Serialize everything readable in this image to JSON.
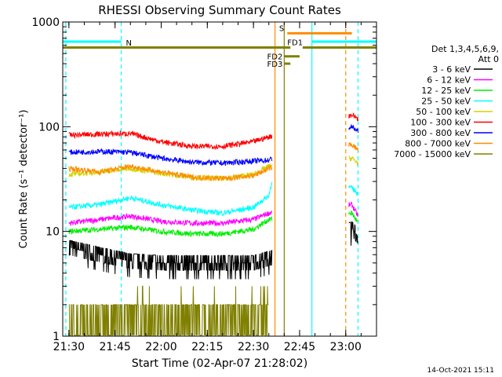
{
  "chart_data": {
    "type": "line",
    "title": "RHESSI Observing Summary Count Rates",
    "xlabel": "Start Time (02-Apr-07 21:28:02)",
    "ylabel": "Count Rate (s⁻¹ detector⁻¹)",
    "y_scale": "log",
    "ylim": [
      1,
      1000
    ],
    "xlim": [
      "21:28",
      "23:10"
    ],
    "x_ticks": [
      "21:30",
      "21:45",
      "22:00",
      "22:15",
      "22:30",
      "22:45",
      "23:00"
    ],
    "y_ticks": [
      "1",
      "10",
      "100",
      "1000"
    ],
    "legend_header": [
      "Det 1,3,4,5,6,9,",
      "Att 0"
    ],
    "legend_placement": "right",
    "footer": "14-Oct-2021 15:11",
    "series": [
      {
        "name": "3 - 6 keV",
        "color": "#000000",
        "points": [
          [
            "21:30",
            7
          ],
          [
            "21:40",
            6
          ],
          [
            "21:50",
            5.2
          ],
          [
            "22:00",
            5
          ],
          [
            "22:10",
            5
          ],
          [
            "22:20",
            5
          ],
          [
            "22:30",
            5
          ],
          [
            "22:35",
            5.5
          ],
          [
            "23:02",
            10.5
          ],
          [
            "23:04",
            9
          ]
        ]
      },
      {
        "name": "6 - 12 keV",
        "color": "#ff00ff",
        "points": [
          [
            "21:30",
            12
          ],
          [
            "21:40",
            13
          ],
          [
            "21:50",
            14
          ],
          [
            "22:00",
            12.5
          ],
          [
            "22:10",
            12
          ],
          [
            "22:20",
            12
          ],
          [
            "22:30",
            13
          ],
          [
            "22:35",
            15
          ],
          [
            "23:02",
            18
          ],
          [
            "23:04",
            14
          ]
        ]
      },
      {
        "name": "12 - 25 keV",
        "color": "#00ee00",
        "points": [
          [
            "21:30",
            10
          ],
          [
            "21:40",
            10.5
          ],
          [
            "21:50",
            11
          ],
          [
            "22:00",
            10
          ],
          [
            "22:10",
            9.5
          ],
          [
            "22:20",
            9.5
          ],
          [
            "22:30",
            10.5
          ],
          [
            "22:35",
            13
          ],
          [
            "23:02",
            15
          ],
          [
            "23:04",
            12
          ]
        ]
      },
      {
        "name": "25 - 50 keV",
        "color": "#00ffff",
        "points": [
          [
            "21:30",
            17
          ],
          [
            "21:40",
            18
          ],
          [
            "21:50",
            21
          ],
          [
            "22:00",
            18
          ],
          [
            "22:10",
            16
          ],
          [
            "22:20",
            15
          ],
          [
            "22:30",
            17
          ],
          [
            "22:35",
            22
          ],
          [
            "22:36",
            30
          ],
          [
            "23:02",
            26
          ],
          [
            "23:04",
            23
          ]
        ]
      },
      {
        "name": "50 - 100 keV",
        "color": "#d4d400",
        "points": [
          [
            "21:30",
            35
          ],
          [
            "21:40",
            37
          ],
          [
            "21:50",
            40
          ],
          [
            "22:00",
            36
          ],
          [
            "22:10",
            33
          ],
          [
            "22:20",
            32
          ],
          [
            "22:30",
            35
          ],
          [
            "22:35",
            42
          ],
          [
            "23:02",
            50
          ],
          [
            "23:04",
            45
          ]
        ]
      },
      {
        "name": "100 - 300 keV",
        "color": "#ff0000",
        "points": [
          [
            "21:30",
            83
          ],
          [
            "21:40",
            85
          ],
          [
            "21:50",
            86
          ],
          [
            "22:00",
            72
          ],
          [
            "22:10",
            65
          ],
          [
            "22:20",
            65
          ],
          [
            "22:30",
            72
          ],
          [
            "22:35",
            80
          ],
          [
            "23:02",
            130
          ],
          [
            "23:04",
            120
          ]
        ]
      },
      {
        "name": "300 - 800 keV",
        "color": "#0000ff",
        "points": [
          [
            "21:30",
            57
          ],
          [
            "21:40",
            58
          ],
          [
            "21:50",
            57
          ],
          [
            "22:00",
            50
          ],
          [
            "22:10",
            46
          ],
          [
            "22:20",
            45
          ],
          [
            "22:30",
            47
          ],
          [
            "22:35",
            48
          ],
          [
            "23:02",
            100
          ],
          [
            "23:04",
            90
          ]
        ]
      },
      {
        "name": "800 - 7000 keV",
        "color": "#ff8c00",
        "points": [
          [
            "21:30",
            40
          ],
          [
            "21:40",
            37
          ],
          [
            "21:50",
            42
          ],
          [
            "22:00",
            37
          ],
          [
            "22:10",
            33
          ],
          [
            "22:20",
            32
          ],
          [
            "22:30",
            34
          ],
          [
            "22:35",
            40
          ],
          [
            "23:02",
            68
          ],
          [
            "23:04",
            60
          ]
        ]
      },
      {
        "name": "7000 - 15000 keV",
        "color": "#808000",
        "points": [
          [
            "21:30",
            1.5
          ],
          [
            "21:40",
            1.5
          ],
          [
            "21:50",
            1.5
          ],
          [
            "22:00",
            1.5
          ],
          [
            "22:10",
            1.5
          ],
          [
            "22:20",
            1.5
          ],
          [
            "22:30",
            1.5
          ],
          [
            "22:35",
            1.5
          ]
        ]
      }
    ],
    "state_bars": [
      {
        "label": "N",
        "color": "#00ffff",
        "y": 650,
        "segments": [
          [
            "21:28",
            "21:47"
          ],
          [
            "22:49",
            "23:10"
          ]
        ]
      },
      {
        "label": "S",
        "color": "#ff8c00",
        "y": 780,
        "segments": [
          [
            "22:41",
            "23:02"
          ]
        ]
      },
      {
        "label": "FD1",
        "color": "#808000",
        "y": 570,
        "segments": [
          [
            "21:28",
            "22:42"
          ],
          [
            "22:46",
            "23:10"
          ]
        ]
      },
      {
        "label": "FD2",
        "color": "#808000",
        "y": 470,
        "segments": [
          [
            "22:40",
            "22:45"
          ]
        ]
      },
      {
        "label": "FD3",
        "color": "#808000",
        "y": 400,
        "segments": [
          [
            "22:40",
            "22:42"
          ]
        ]
      }
    ],
    "vlines": [
      {
        "time": "21:29",
        "color": "#00ffff",
        "style": "dashed"
      },
      {
        "time": "21:47",
        "color": "#00ffff",
        "style": "dashed"
      },
      {
        "time": "22:37",
        "color": "#ff8c00",
        "style": "solid"
      },
      {
        "time": "22:40",
        "color": "#808000",
        "style": "solid"
      },
      {
        "time": "22:49",
        "color": "#00ffff",
        "style": "solid"
      },
      {
        "time": "23:00",
        "color": "#ff8c00",
        "style": "dashed"
      },
      {
        "time": "23:04",
        "color": "#00ffff",
        "style": "dashed"
      }
    ],
    "gaps": [
      [
        "22:36",
        "23:01"
      ]
    ]
  }
}
